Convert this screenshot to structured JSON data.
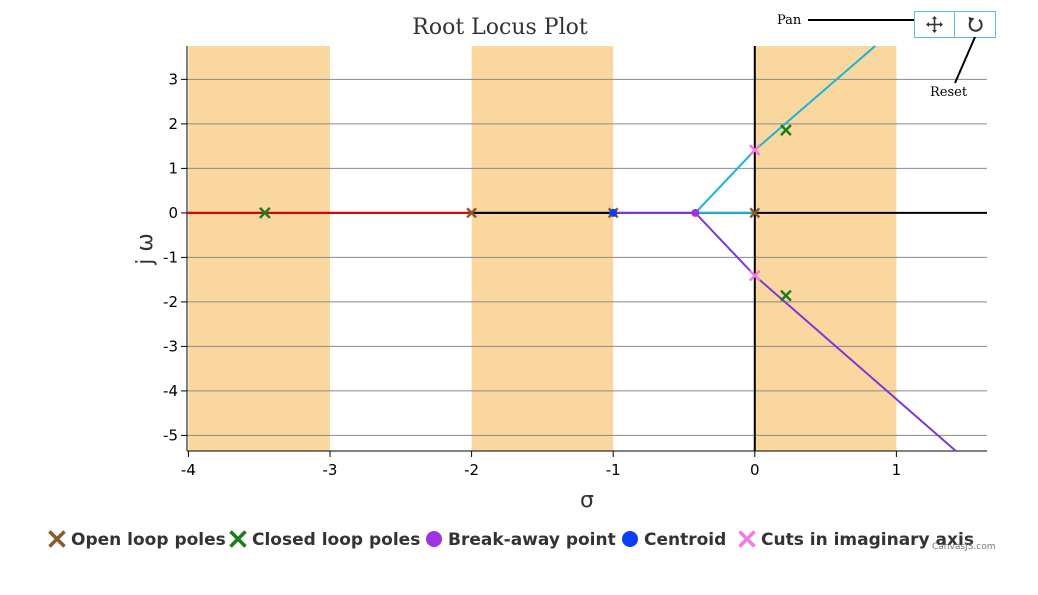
{
  "chart_data": {
    "type": "line",
    "title": "Root Locus Plot",
    "xlabel": "σ",
    "ylabel": "j ω",
    "xlim": [
      -4.01,
      1.64
    ],
    "ylim": [
      -5.35,
      3.75
    ],
    "xticks": [
      -4,
      -3,
      -2,
      -1,
      0,
      1
    ],
    "yticks": [
      -5,
      -4,
      -3,
      -2,
      -1,
      0,
      1,
      2,
      3
    ],
    "grid": "horizontal",
    "shaded_bands": [
      [
        -4,
        -3
      ],
      [
        -2,
        -1
      ],
      [
        0,
        1
      ]
    ],
    "legend_position": "bottom",
    "series": [
      {
        "name": "",
        "color": "#e3000e",
        "points": [
          [
            -4.01,
            0
          ],
          [
            -2,
            0
          ]
        ]
      },
      {
        "name": "",
        "color": "#000000",
        "points": [
          [
            -2,
            0
          ],
          [
            -1,
            0
          ]
        ]
      },
      {
        "name": "",
        "color": "#7b38d8",
        "points": [
          [
            -1,
            0
          ],
          [
            -0.42,
            0
          ]
        ]
      },
      {
        "name": "",
        "color": "#1ab4d6",
        "points": [
          [
            -0.42,
            0
          ],
          [
            0,
            0
          ]
        ]
      },
      {
        "name": "",
        "color": "#1ab4d6",
        "points": [
          [
            -0.42,
            0
          ],
          [
            0,
            1.41
          ],
          [
            0.85,
            3.75
          ]
        ]
      },
      {
        "name": "",
        "color": "#7b38d8",
        "points": [
          [
            -0.42,
            0
          ],
          [
            0,
            -1.41
          ],
          [
            1.42,
            -5.35
          ]
        ]
      }
    ],
    "markers": {
      "open_loop_poles": [
        [
          -2,
          0
        ],
        [
          -1,
          0
        ],
        [
          0,
          0
        ]
      ],
      "closed_loop_poles": [
        [
          -3.46,
          0
        ],
        [
          0.22,
          1.86
        ],
        [
          0.22,
          -1.86
        ]
      ],
      "break_away_point": [
        [
          -0.42,
          0
        ]
      ],
      "centroid": [
        [
          -1,
          0
        ]
      ],
      "imaginary_axis_cuts": [
        [
          0,
          1.41
        ],
        [
          0,
          -1.41
        ]
      ]
    },
    "legend": [
      {
        "label": "Open loop poles",
        "shape": "cross",
        "color": "#8b5a2b"
      },
      {
        "label": "Closed loop poles",
        "shape": "cross",
        "color": "#1e7b1e"
      },
      {
        "label": "Break-away point",
        "shape": "circle",
        "color": "#a033e0"
      },
      {
        "label": "Centroid",
        "shape": "circle",
        "color": "#0b3ef5"
      },
      {
        "label": "Cuts in imaginary axis",
        "shape": "cross",
        "color": "#f27ae0"
      }
    ]
  },
  "toolbar": {
    "pan_label": "Pan",
    "reset_label": "Reset",
    "pan_icon": "pan-icon",
    "reset_icon": "reset-icon"
  },
  "credit": "CanvasJS.com",
  "colors": {
    "band": "#f9d79f",
    "grid": "#8a8a8a",
    "button_border": "#5bc0de"
  }
}
